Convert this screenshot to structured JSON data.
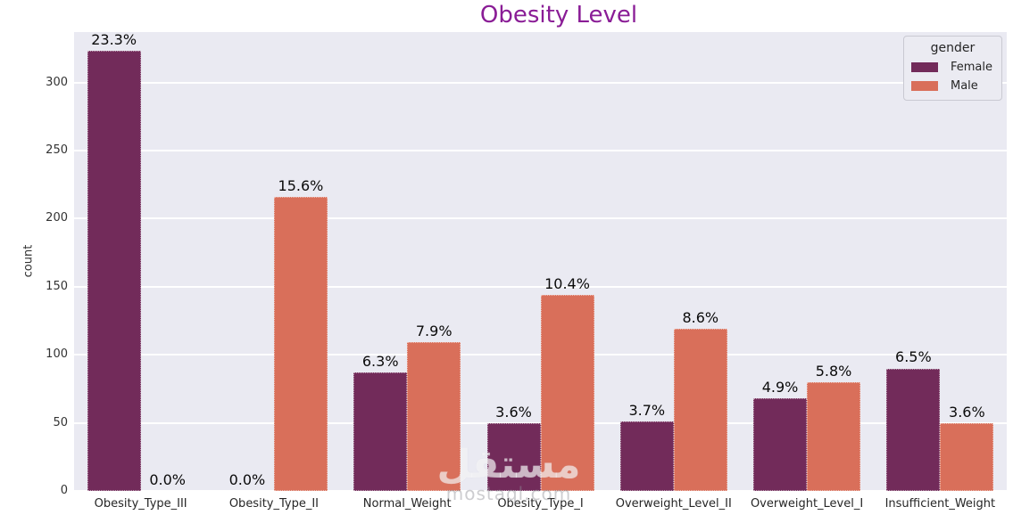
{
  "colors": {
    "title": "#8a1d96",
    "axes_background": "#eaeaf2",
    "grid": "#ffffff",
    "tick_text": "#333333",
    "female": "#722b5a",
    "male": "#d96f5a"
  },
  "watermark": {
    "line1": "مستقل",
    "line2": "mostaql.com"
  },
  "chart_data": {
    "type": "bar",
    "title": "Obesity Level",
    "xlabel": "",
    "ylabel": "count",
    "categories": [
      "Obesity_Type_III",
      "Obesity_Type_II",
      "Normal_Weight",
      "Obesity_Type_I",
      "Overweight_Level_II",
      "Overweight_Level_I",
      "Insufficient_Weight"
    ],
    "series": [
      {
        "name": "Female",
        "color": "#722b5a",
        "values": [
          323,
          0,
          87,
          50,
          51,
          68,
          90
        ],
        "bar_labels": [
          "23.3%",
          "0.0%",
          "6.3%",
          "3.6%",
          "3.7%",
          "4.9%",
          "6.5%"
        ]
      },
      {
        "name": "Male",
        "color": "#d96f5a",
        "values": [
          0,
          216,
          109,
          144,
          119,
          80,
          50
        ],
        "bar_labels": [
          "0.0%",
          "15.6%",
          "7.9%",
          "10.4%",
          "8.6%",
          "5.8%",
          "3.6%"
        ]
      }
    ],
    "yticks": [
      0,
      50,
      100,
      150,
      200,
      250,
      300
    ],
    "ylim": [
      0,
      337
    ],
    "grid": "horizontal",
    "legend": {
      "title": "gender",
      "position": "upper-right"
    }
  }
}
